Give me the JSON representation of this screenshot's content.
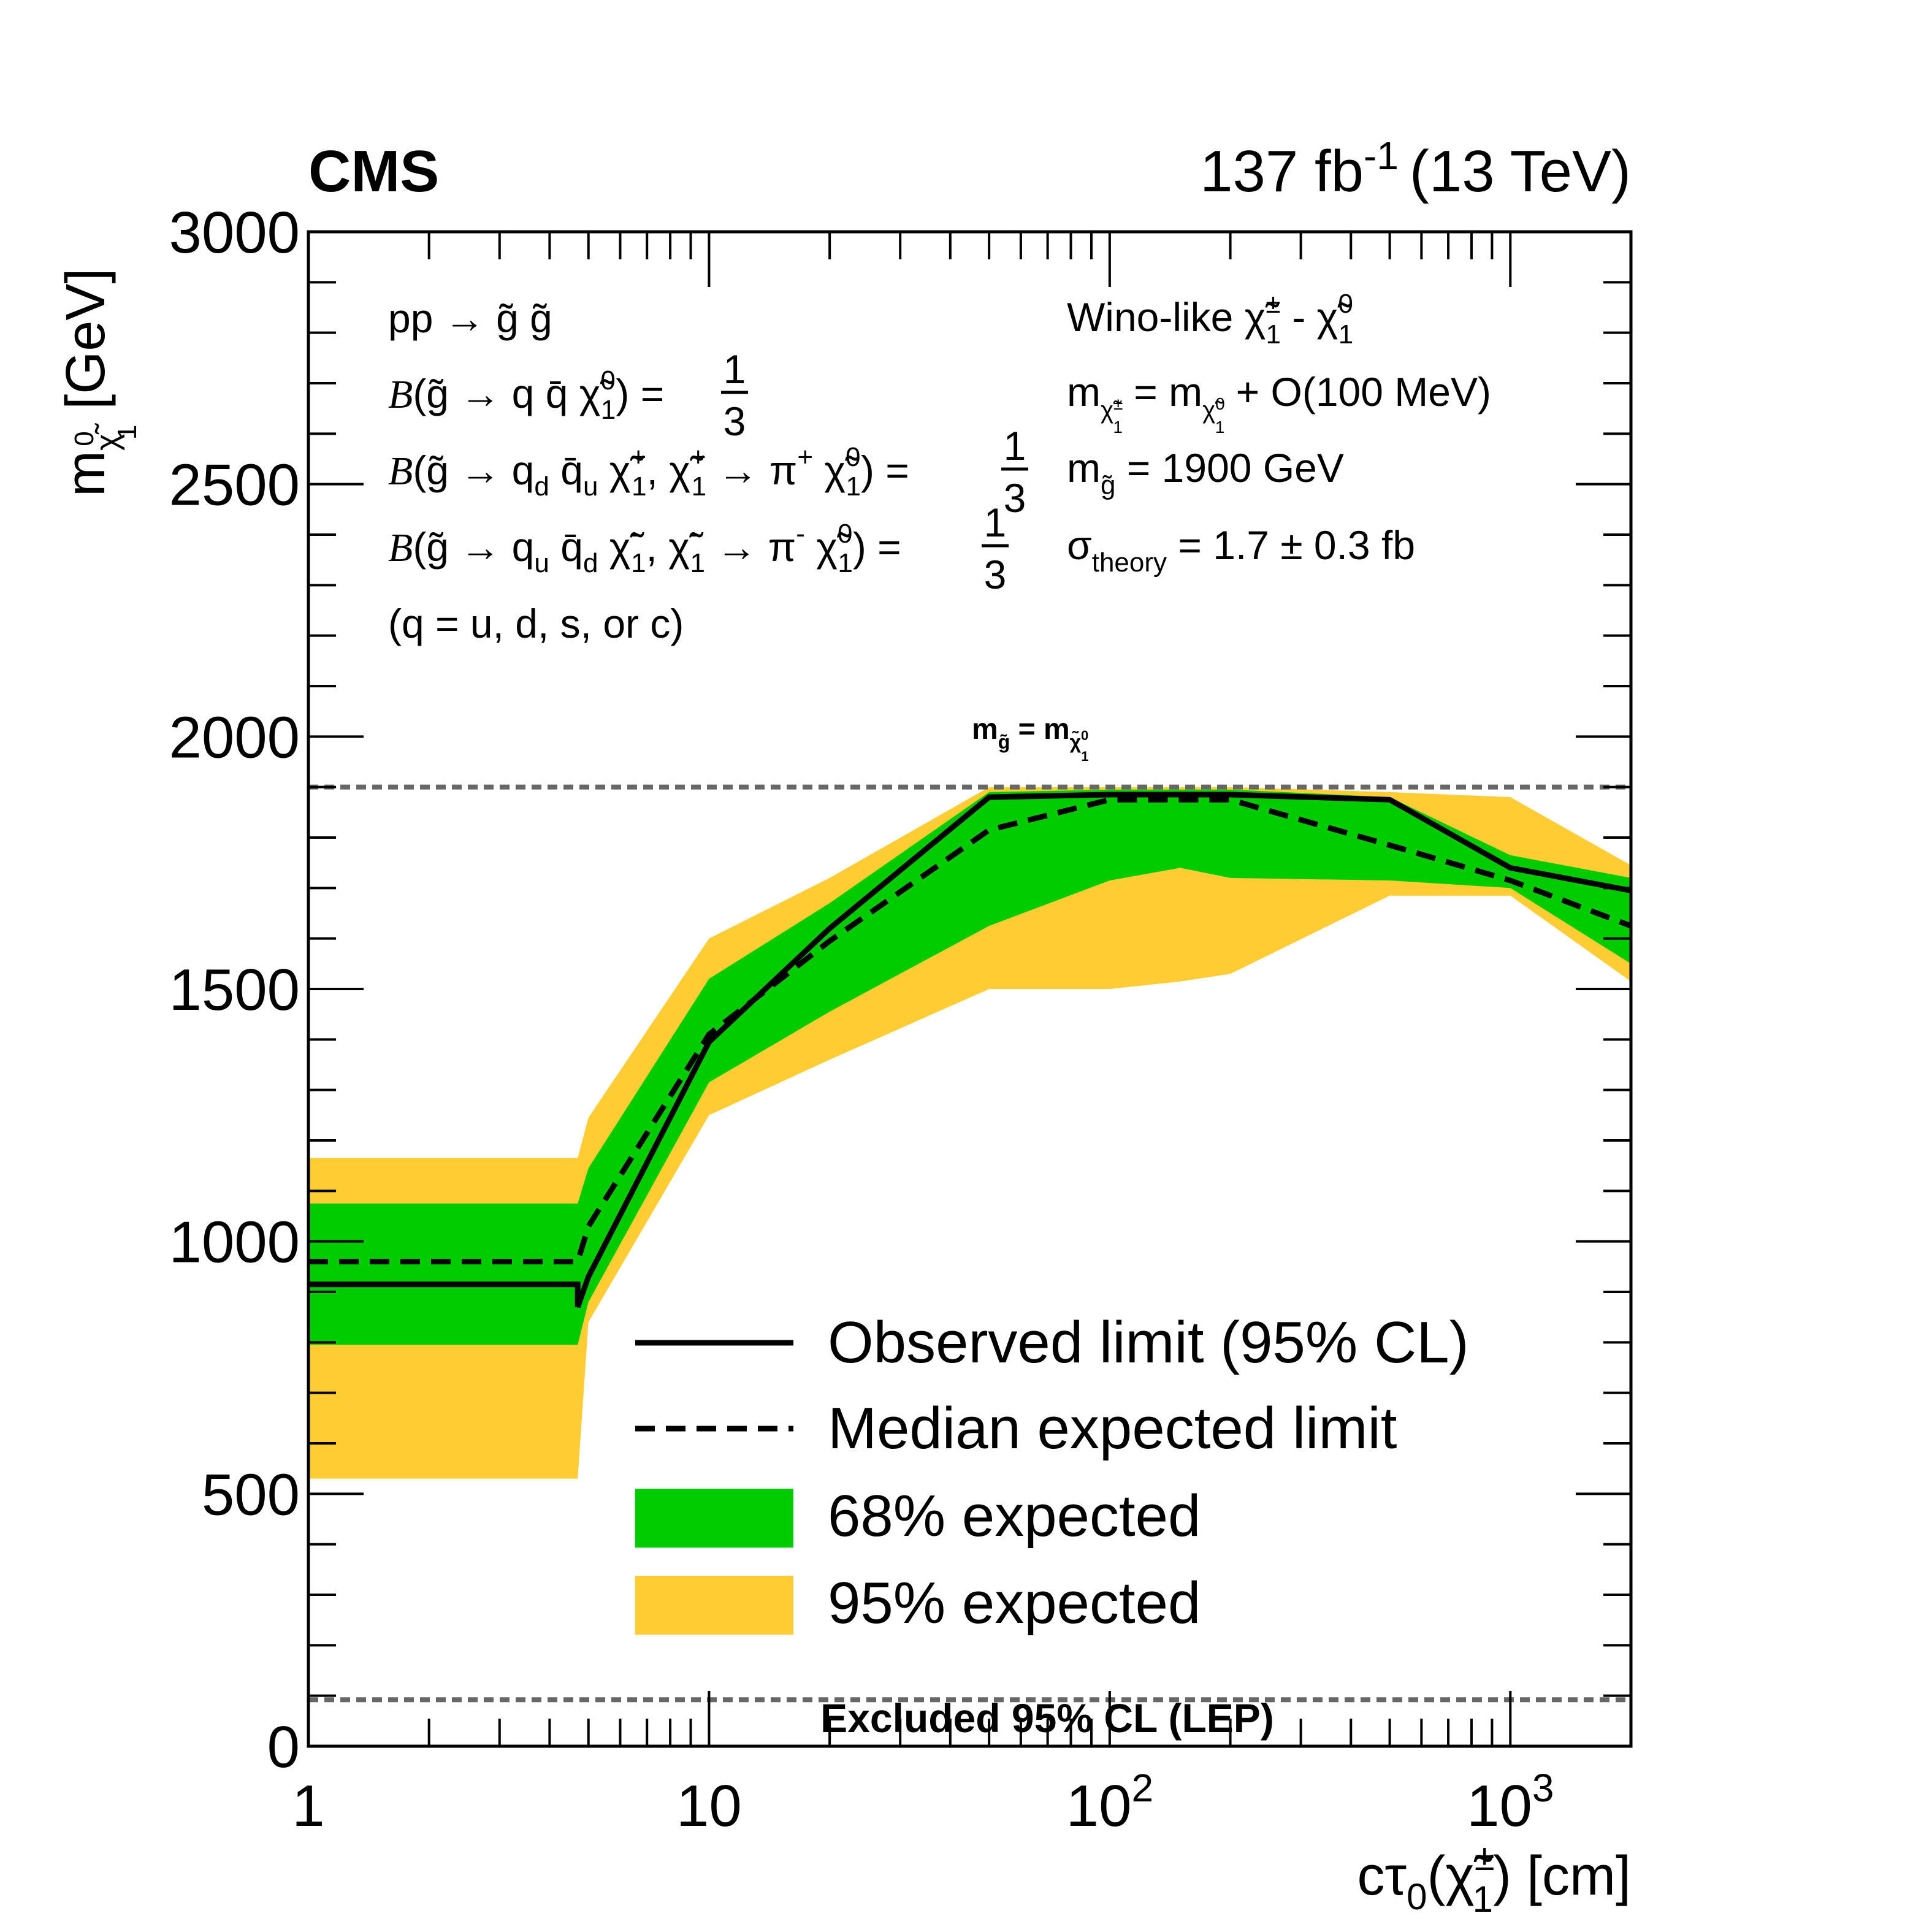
{
  "chart_data": {
    "type": "line",
    "experiment": "CMS",
    "lumi_label": "137 fb",
    "lumi_exponent": "-1",
    "energy_label": "(13 TeV)",
    "xlabel": {
      "main": "cτ",
      "sub0": "0",
      "paren_open": "(",
      "chi": "χ̃",
      "sup": "±",
      "sub1": "1",
      "rest": ") [cm]"
    },
    "ylabel": {
      "m": "m",
      "chi": "χ̃",
      "sup": "0",
      "sub": "1",
      "unit": " [GeV]"
    },
    "x_scale": "log",
    "xlim": [
      1,
      2000
    ],
    "ylim": [
      0,
      3000
    ],
    "y_ticks": [
      "0",
      "500",
      "1000",
      "1500",
      "2000",
      "2500",
      "3000"
    ],
    "x_ticks": [
      {
        "value": 1,
        "base": "1",
        "exp": ""
      },
      {
        "value": 10,
        "base": "10",
        "exp": ""
      },
      {
        "value": 100,
        "base": "10",
        "exp": "2"
      },
      {
        "value": 1000,
        "base": "10",
        "exp": "3"
      }
    ],
    "observed": {
      "name": "Observed limit (95% CL)",
      "x": [
        1,
        4.7,
        4.7,
        5,
        10,
        20,
        50,
        100,
        200,
        500,
        1000,
        2000
      ],
      "y": [
        915,
        915,
        870,
        930,
        1395,
        1620,
        1880,
        1885,
        1885,
        1875,
        1740,
        1695
      ]
    },
    "expected": {
      "name": "Median expected limit",
      "x": [
        1,
        4.7,
        5,
        10,
        20,
        50,
        100,
        200,
        500,
        1000,
        2000
      ],
      "y": [
        960,
        960,
        1030,
        1410,
        1595,
        1815,
        1875,
        1875,
        1785,
        1715,
        1625
      ]
    },
    "band_68": {
      "name": "68% expected",
      "x": [
        1,
        4.7,
        5,
        10,
        20,
        50,
        100,
        150,
        200,
        500,
        1000,
        2000
      ],
      "upper": [
        1075,
        1075,
        1145,
        1520,
        1670,
        1890,
        1895,
        1895,
        1895,
        1880,
        1765,
        1720
      ],
      "lower": [
        795,
        795,
        880,
        1315,
        1455,
        1625,
        1715,
        1740,
        1720,
        1715,
        1700,
        1550
      ]
    },
    "band_95": {
      "name": "95% expected",
      "x": [
        1,
        4.7,
        5,
        10,
        20,
        50,
        100,
        150,
        200,
        500,
        1000,
        2000
      ],
      "upper": [
        1165,
        1165,
        1245,
        1600,
        1720,
        1900,
        1900,
        1900,
        1900,
        1890,
        1880,
        1745
      ],
      "lower": [
        530,
        530,
        840,
        1250,
        1360,
        1500,
        1500,
        1515,
        1530,
        1685,
        1685,
        1515
      ]
    },
    "reference_lines": [
      {
        "y": 1900,
        "label": "m",
        "sub_g": "g̃",
        "eq": " = m",
        "sub_chi": "χ̃",
        "sup_chi": "0",
        "sub_chi_idx": "1"
      },
      {
        "y": 92,
        "label": "Excluded 95% CL (LEP)"
      }
    ],
    "legend": [
      "Observed limit (95% CL)",
      "Median expected limit",
      "68% expected",
      "95% expected"
    ],
    "legend_position": "bottom-right",
    "colors": {
      "band_68": "#00cc00",
      "band_95": "#ffcc33",
      "line": "#000000",
      "ref": "#666666"
    },
    "annotations_left": [
      {
        "text": "pp → g̃ g̃"
      },
      {
        "b": "B",
        "text": "(g̃ → q q̄ χ̃",
        "sup": "0",
        "sub": "1",
        "tail": ") = ",
        "num": "1",
        "den": "3"
      },
      {
        "b": "B",
        "text": "(g̃ → q",
        "s1": "d",
        "t2": " q̄",
        "s2": "u",
        "t3": " χ̃",
        "sup3": "+",
        "sub3": "1",
        "t4": ", χ̃",
        "sup4": "+",
        "sub4": "1",
        "t5": " → π",
        "sup5": "+",
        "t6": " χ̃",
        "sup6": "0",
        "sub6": "1",
        "tail": ") = ",
        "num": "1",
        "den": "3"
      },
      {
        "b": "B",
        "text": "(g̃ → q",
        "s1": "u",
        "t2": " q̄",
        "s2": "d",
        "t3": " χ̃",
        "sup3": "-",
        "sub3": "1",
        "t4": ", χ̃",
        "sup4": "-",
        "sub4": "1",
        "t5": " → π",
        "sup5": "-",
        "t6": " χ̃",
        "sup6": "0",
        "sub6": "1",
        "tail": ") = ",
        "num": "1",
        "den": "3"
      },
      {
        "text": "(q = u, d, s, or c)"
      }
    ],
    "annotations_right": [
      {
        "text": "Wino-like χ̃",
        "sup1": "±",
        "sub1": "1",
        "mid": " - χ̃",
        "sup2": "0",
        "sub2": "1"
      },
      {
        "m1": "m",
        "s1": "χ̃",
        "ss1": "±",
        "ssub1": "1",
        "eq": " = m",
        "s2": "χ̃",
        "ss2": "0",
        "ssub2": "1",
        "tail": " + O(100 MeV)"
      },
      {
        "m": "m",
        "s": "g̃",
        "tail": " = 1900 GeV"
      },
      {
        "sigma": "σ",
        "sub": "theory",
        "tail": " = 1.7 ± 0.3 fb"
      }
    ]
  }
}
